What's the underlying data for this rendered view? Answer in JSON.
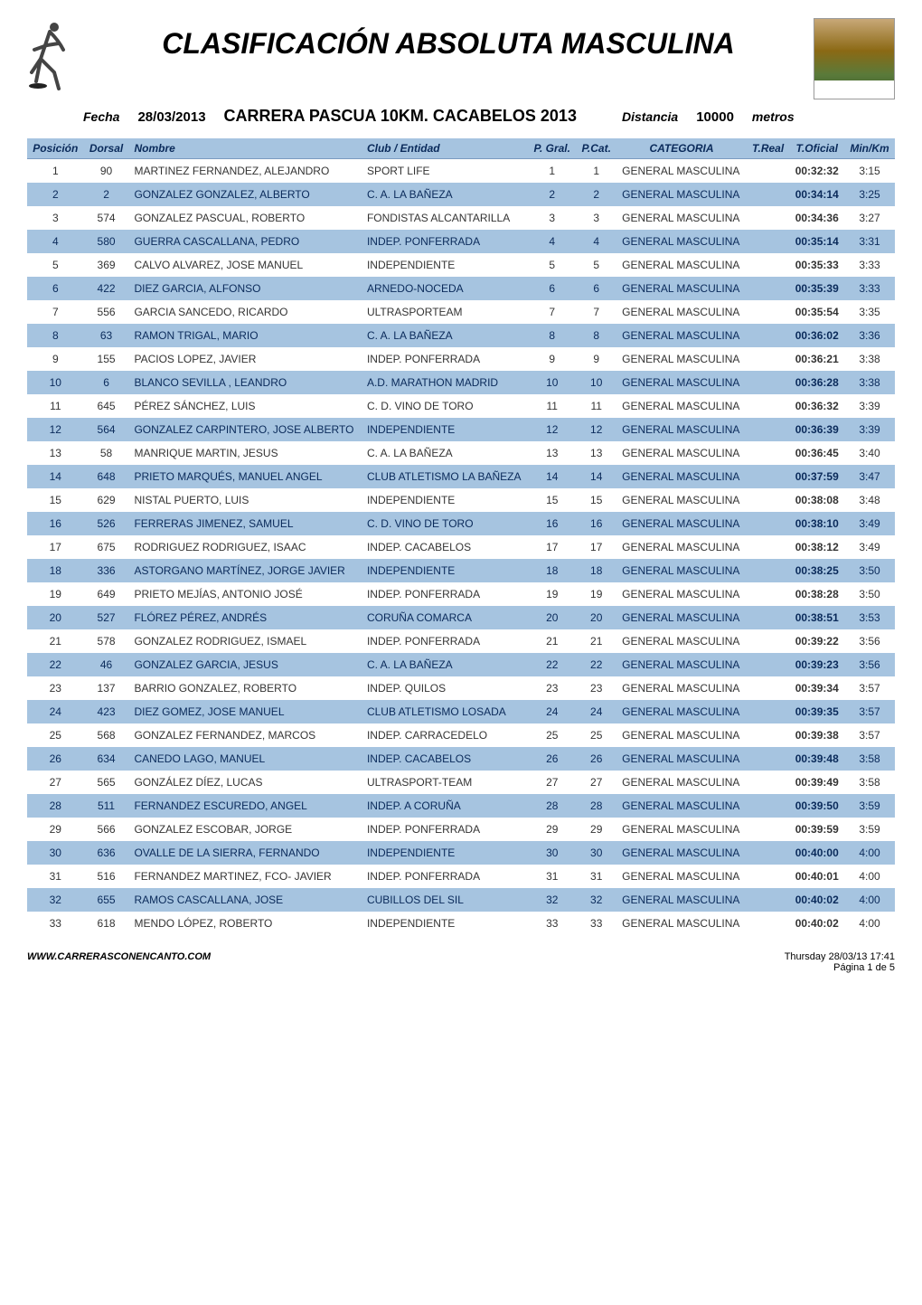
{
  "header": {
    "main_title": "CLASIFICACIÓN ABSOLUTA MASCULINA",
    "fecha_label": "Fecha",
    "fecha_value": "28/03/2013",
    "event_title": "CARRERA PASCUA 10KM. CACABELOS 2013",
    "distancia_label": "Distancia",
    "distancia_value": "10000",
    "distancia_unit": "metros"
  },
  "columns": {
    "posicion": "Posición",
    "dorsal": "Dorsal",
    "nombre": "Nombre",
    "club": "Club / Entidad",
    "pgral": "P. Gral.",
    "pcat": "P.Cat.",
    "categoria": "CATEGORIA",
    "treal": "T.Real",
    "toficial": "T.Oficial",
    "minkm": "Min/Km"
  },
  "rows": [
    {
      "pos": "1",
      "dorsal": "90",
      "nombre": "MARTINEZ FERNANDEZ, ALEJANDRO",
      "club": "SPORT LIFE",
      "pgral": "1",
      "pcat": "1",
      "cat": "GENERAL MASCULINA",
      "treal": "",
      "tof": "00:32:32",
      "mk": "3:15"
    },
    {
      "pos": "2",
      "dorsal": "2",
      "nombre": "GONZALEZ GONZALEZ, ALBERTO",
      "club": "C. A. LA BAÑEZA",
      "pgral": "2",
      "pcat": "2",
      "cat": "GENERAL MASCULINA",
      "treal": "",
      "tof": "00:34:14",
      "mk": "3:25"
    },
    {
      "pos": "3",
      "dorsal": "574",
      "nombre": "GONZALEZ PASCUAL, ROBERTO",
      "club": "FONDISTAS ALCANTARILLA",
      "pgral": "3",
      "pcat": "3",
      "cat": "GENERAL MASCULINA",
      "treal": "",
      "tof": "00:34:36",
      "mk": "3:27"
    },
    {
      "pos": "4",
      "dorsal": "580",
      "nombre": "GUERRA CASCALLANA, PEDRO",
      "club": "INDEP. PONFERRADA",
      "pgral": "4",
      "pcat": "4",
      "cat": "GENERAL MASCULINA",
      "treal": "",
      "tof": "00:35:14",
      "mk": "3:31"
    },
    {
      "pos": "5",
      "dorsal": "369",
      "nombre": "CALVO ALVAREZ, JOSE MANUEL",
      "club": "INDEPENDIENTE",
      "pgral": "5",
      "pcat": "5",
      "cat": "GENERAL MASCULINA",
      "treal": "",
      "tof": "00:35:33",
      "mk": "3:33"
    },
    {
      "pos": "6",
      "dorsal": "422",
      "nombre": "DIEZ GARCIA, ALFONSO",
      "club": "ARNEDO-NOCEDA",
      "pgral": "6",
      "pcat": "6",
      "cat": "GENERAL MASCULINA",
      "treal": "",
      "tof": "00:35:39",
      "mk": "3:33"
    },
    {
      "pos": "7",
      "dorsal": "556",
      "nombre": "GARCIA SANCEDO, RICARDO",
      "club": "ULTRASPORTEAM",
      "pgral": "7",
      "pcat": "7",
      "cat": "GENERAL MASCULINA",
      "treal": "",
      "tof": "00:35:54",
      "mk": "3:35"
    },
    {
      "pos": "8",
      "dorsal": "63",
      "nombre": "RAMON TRIGAL, MARIO",
      "club": "C. A. LA BAÑEZA",
      "pgral": "8",
      "pcat": "8",
      "cat": "GENERAL MASCULINA",
      "treal": "",
      "tof": "00:36:02",
      "mk": "3:36"
    },
    {
      "pos": "9",
      "dorsal": "155",
      "nombre": "PACIOS LOPEZ, JAVIER",
      "club": "INDEP. PONFERRADA",
      "pgral": "9",
      "pcat": "9",
      "cat": "GENERAL MASCULINA",
      "treal": "",
      "tof": "00:36:21",
      "mk": "3:38"
    },
    {
      "pos": "10",
      "dorsal": "6",
      "nombre": "BLANCO SEVILLA , LEANDRO",
      "club": "A.D. MARATHON MADRID",
      "pgral": "10",
      "pcat": "10",
      "cat": "GENERAL MASCULINA",
      "treal": "",
      "tof": "00:36:28",
      "mk": "3:38"
    },
    {
      "pos": "11",
      "dorsal": "645",
      "nombre": "PÉREZ SÁNCHEZ, LUIS",
      "club": "C. D. VINO DE TORO",
      "pgral": "11",
      "pcat": "11",
      "cat": "GENERAL MASCULINA",
      "treal": "",
      "tof": "00:36:32",
      "mk": "3:39"
    },
    {
      "pos": "12",
      "dorsal": "564",
      "nombre": "GONZALEZ CARPINTERO, JOSE ALBERTO",
      "club": "INDEPENDIENTE",
      "pgral": "12",
      "pcat": "12",
      "cat": "GENERAL MASCULINA",
      "treal": "",
      "tof": "00:36:39",
      "mk": "3:39"
    },
    {
      "pos": "13",
      "dorsal": "58",
      "nombre": "MANRIQUE MARTIN, JESUS",
      "club": "C. A. LA BAÑEZA",
      "pgral": "13",
      "pcat": "13",
      "cat": "GENERAL MASCULINA",
      "treal": "",
      "tof": "00:36:45",
      "mk": "3:40"
    },
    {
      "pos": "14",
      "dorsal": "648",
      "nombre": "PRIETO MARQUÉS, MANUEL ANGEL",
      "club": "CLUB ATLETISMO LA BAÑEZA",
      "pgral": "14",
      "pcat": "14",
      "cat": "GENERAL MASCULINA",
      "treal": "",
      "tof": "00:37:59",
      "mk": "3:47"
    },
    {
      "pos": "15",
      "dorsal": "629",
      "nombre": "NISTAL PUERTO, LUIS",
      "club": "INDEPENDIENTE",
      "pgral": "15",
      "pcat": "15",
      "cat": "GENERAL MASCULINA",
      "treal": "",
      "tof": "00:38:08",
      "mk": "3:48"
    },
    {
      "pos": "16",
      "dorsal": "526",
      "nombre": "FERRERAS JIMENEZ, SAMUEL",
      "club": "C. D. VINO DE TORO",
      "pgral": "16",
      "pcat": "16",
      "cat": "GENERAL MASCULINA",
      "treal": "",
      "tof": "00:38:10",
      "mk": "3:49"
    },
    {
      "pos": "17",
      "dorsal": "675",
      "nombre": "RODRIGUEZ RODRIGUEZ, ISAAC",
      "club": "INDEP. CACABELOS",
      "pgral": "17",
      "pcat": "17",
      "cat": "GENERAL MASCULINA",
      "treal": "",
      "tof": "00:38:12",
      "mk": "3:49"
    },
    {
      "pos": "18",
      "dorsal": "336",
      "nombre": "ASTORGANO MARTÍNEZ, JORGE JAVIER",
      "club": "INDEPENDIENTE",
      "pgral": "18",
      "pcat": "18",
      "cat": "GENERAL MASCULINA",
      "treal": "",
      "tof": "00:38:25",
      "mk": "3:50"
    },
    {
      "pos": "19",
      "dorsal": "649",
      "nombre": "PRIETO MEJÍAS, ANTONIO JOSÉ",
      "club": "INDEP. PONFERRADA",
      "pgral": "19",
      "pcat": "19",
      "cat": "GENERAL MASCULINA",
      "treal": "",
      "tof": "00:38:28",
      "mk": "3:50"
    },
    {
      "pos": "20",
      "dorsal": "527",
      "nombre": "FLÓREZ PÉREZ, ANDRÉS",
      "club": "CORUÑA COMARCA",
      "pgral": "20",
      "pcat": "20",
      "cat": "GENERAL MASCULINA",
      "treal": "",
      "tof": "00:38:51",
      "mk": "3:53"
    },
    {
      "pos": "21",
      "dorsal": "578",
      "nombre": "GONZALEZ RODRIGUEZ, ISMAEL",
      "club": "INDEP. PONFERRADA",
      "pgral": "21",
      "pcat": "21",
      "cat": "GENERAL MASCULINA",
      "treal": "",
      "tof": "00:39:22",
      "mk": "3:56"
    },
    {
      "pos": "22",
      "dorsal": "46",
      "nombre": "GONZALEZ GARCIA, JESUS",
      "club": "C. A. LA BAÑEZA",
      "pgral": "22",
      "pcat": "22",
      "cat": "GENERAL MASCULINA",
      "treal": "",
      "tof": "00:39:23",
      "mk": "3:56"
    },
    {
      "pos": "23",
      "dorsal": "137",
      "nombre": "BARRIO GONZALEZ, ROBERTO",
      "club": "INDEP. QUILOS",
      "pgral": "23",
      "pcat": "23",
      "cat": "GENERAL MASCULINA",
      "treal": "",
      "tof": "00:39:34",
      "mk": "3:57"
    },
    {
      "pos": "24",
      "dorsal": "423",
      "nombre": "DIEZ GOMEZ, JOSE MANUEL",
      "club": "CLUB ATLETISMO LOSADA",
      "pgral": "24",
      "pcat": "24",
      "cat": "GENERAL MASCULINA",
      "treal": "",
      "tof": "00:39:35",
      "mk": "3:57"
    },
    {
      "pos": "25",
      "dorsal": "568",
      "nombre": "GONZALEZ FERNANDEZ, MARCOS",
      "club": "INDEP. CARRACEDELO",
      "pgral": "25",
      "pcat": "25",
      "cat": "GENERAL MASCULINA",
      "treal": "",
      "tof": "00:39:38",
      "mk": "3:57"
    },
    {
      "pos": "26",
      "dorsal": "634",
      "nombre": "CANEDO LAGO, MANUEL",
      "club": "INDEP. CACABELOS",
      "pgral": "26",
      "pcat": "26",
      "cat": "GENERAL MASCULINA",
      "treal": "",
      "tof": "00:39:48",
      "mk": "3:58"
    },
    {
      "pos": "27",
      "dorsal": "565",
      "nombre": "GONZÁLEZ DÍEZ, LUCAS",
      "club": "ULTRASPORT-TEAM",
      "pgral": "27",
      "pcat": "27",
      "cat": "GENERAL MASCULINA",
      "treal": "",
      "tof": "00:39:49",
      "mk": "3:58"
    },
    {
      "pos": "28",
      "dorsal": "511",
      "nombre": "FERNANDEZ ESCUREDO, ANGEL",
      "club": "INDEP. A CORUÑA",
      "pgral": "28",
      "pcat": "28",
      "cat": "GENERAL MASCULINA",
      "treal": "",
      "tof": "00:39:50",
      "mk": "3:59"
    },
    {
      "pos": "29",
      "dorsal": "566",
      "nombre": "GONZALEZ ESCOBAR, JORGE",
      "club": "INDEP. PONFERRADA",
      "pgral": "29",
      "pcat": "29",
      "cat": "GENERAL MASCULINA",
      "treal": "",
      "tof": "00:39:59",
      "mk": "3:59"
    },
    {
      "pos": "30",
      "dorsal": "636",
      "nombre": "OVALLE DE LA SIERRA, FERNANDO",
      "club": "INDEPENDIENTE",
      "pgral": "30",
      "pcat": "30",
      "cat": "GENERAL MASCULINA",
      "treal": "",
      "tof": "00:40:00",
      "mk": "4:00"
    },
    {
      "pos": "31",
      "dorsal": "516",
      "nombre": "FERNANDEZ MARTINEZ, FCO- JAVIER",
      "club": "INDEP. PONFERRADA",
      "pgral": "31",
      "pcat": "31",
      "cat": "GENERAL MASCULINA",
      "treal": "",
      "tof": "00:40:01",
      "mk": "4:00"
    },
    {
      "pos": "32",
      "dorsal": "655",
      "nombre": "RAMOS CASCALLANA, JOSE",
      "club": "CUBILLOS DEL SIL",
      "pgral": "32",
      "pcat": "32",
      "cat": "GENERAL MASCULINA",
      "treal": "",
      "tof": "00:40:02",
      "mk": "4:00"
    },
    {
      "pos": "33",
      "dorsal": "618",
      "nombre": "MENDO LÓPEZ, ROBERTO",
      "club": "INDEPENDIENTE",
      "pgral": "33",
      "pcat": "33",
      "cat": "GENERAL MASCULINA",
      "treal": "",
      "tof": "00:40:02",
      "mk": "4:00"
    }
  ],
  "footer": {
    "site": "WWW.CARRERASCONENCANTO.COM",
    "timestamp": "Thursday 28/03/13 17:41",
    "page": "Página 1 de 5"
  },
  "style": {
    "header_bg": "#a6c4e0",
    "header_fg": "#0a2a5a",
    "row_even_bg": "#a6c4e0",
    "row_even_fg": "#0a2a5a",
    "row_odd_bg": "#ffffff",
    "row_odd_fg": "#333333"
  }
}
